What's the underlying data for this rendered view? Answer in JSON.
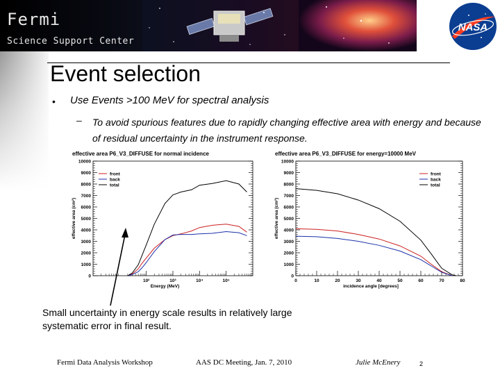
{
  "banner": {
    "title": "Fermi",
    "subtitle": "Science Support Center",
    "nasa_logo_text": "NASA"
  },
  "slide": {
    "title": "Event selection",
    "bullet_marker": "•",
    "bullet": "Use Events >100 MeV for spectral analysis",
    "sub_marker": "–",
    "sub_bullet": "To avoid spurious features due to rapidly changing effective area with energy and because of residual uncertainty in the instrument response.",
    "caption": "Small uncertainty in energy scale results in relatively large systematic error in final result."
  },
  "footer": {
    "left": "Fermi Data Analysis Workshop",
    "center": "AAS DC Meeting, Jan. 7, 2010",
    "right": "Julie McEnery",
    "page": "2"
  },
  "colors": {
    "front": "#cc1f1f",
    "back": "#1a2ea8",
    "total": "#000000"
  },
  "chart_data": [
    {
      "type": "line",
      "title": "effective area P6_V3_DIFFUSE for normal incidence",
      "xlabel": "Energy (MeV)",
      "ylabel": "effective area (cm²)",
      "xscale": "log",
      "xlim": [
        1,
        1000000
      ],
      "ylim": [
        0,
        10000
      ],
      "yticks": [
        0,
        1000,
        2000,
        3000,
        4000,
        5000,
        6000,
        7000,
        8000,
        9000,
        10000
      ],
      "xtick_labels": [
        "10²",
        "10³",
        "10⁴",
        "10⁵"
      ],
      "xtick_values": [
        100,
        1000,
        10000,
        100000
      ],
      "legend_placement": "top-left",
      "series": [
        {
          "name": "front",
          "x": [
            20,
            30,
            50,
            70,
            100,
            200,
            500,
            1000,
            2000,
            5000,
            10000,
            30000,
            100000,
            300000,
            600000
          ],
          "y": [
            0,
            150,
            600,
            1100,
            1550,
            2400,
            3150,
            3500,
            3650,
            3900,
            4200,
            4400,
            4500,
            4300,
            3800
          ]
        },
        {
          "name": "back",
          "x": [
            20,
            30,
            50,
            70,
            100,
            200,
            500,
            1000,
            2000,
            5000,
            10000,
            30000,
            100000,
            300000,
            600000
          ],
          "y": [
            0,
            100,
            350,
            700,
            1150,
            2100,
            3150,
            3550,
            3600,
            3600,
            3650,
            3700,
            3850,
            3750,
            3500
          ]
        },
        {
          "name": "total",
          "x": [
            20,
            30,
            50,
            70,
            100,
            200,
            500,
            1000,
            2000,
            5000,
            10000,
            30000,
            100000,
            300000,
            600000
          ],
          "y": [
            0,
            250,
            950,
            1800,
            2700,
            4500,
            6300,
            7050,
            7300,
            7500,
            7900,
            8050,
            8300,
            8000,
            7300
          ]
        }
      ]
    },
    {
      "type": "line",
      "title": "effective area P6_V3_DIFFUSE for energy=10000 MeV",
      "xlabel": "incidence angle [degrees]",
      "ylabel": "effective area (cm²)",
      "xlim": [
        0,
        80
      ],
      "ylim": [
        0,
        10000
      ],
      "yticks": [
        0,
        1000,
        2000,
        3000,
        4000,
        5000,
        6000,
        7000,
        8000,
        9000,
        10000
      ],
      "xticks": [
        0,
        10,
        20,
        30,
        40,
        50,
        60,
        70,
        80
      ],
      "legend_placement": "top-right",
      "series": [
        {
          "name": "front",
          "x": [
            0,
            10,
            20,
            30,
            40,
            50,
            60,
            65,
            70,
            75
          ],
          "y": [
            4100,
            4050,
            3900,
            3600,
            3200,
            2600,
            1700,
            1000,
            350,
            0
          ]
        },
        {
          "name": "back",
          "x": [
            0,
            10,
            20,
            30,
            40,
            50,
            60,
            65,
            70,
            75
          ],
          "y": [
            3450,
            3400,
            3250,
            3000,
            2650,
            2150,
            1400,
            850,
            300,
            0
          ]
        },
        {
          "name": "total",
          "x": [
            0,
            10,
            20,
            30,
            40,
            50,
            60,
            65,
            70,
            75,
            77
          ],
          "y": [
            7600,
            7450,
            7150,
            6600,
            5850,
            4750,
            3100,
            1900,
            650,
            80,
            0
          ]
        }
      ]
    }
  ]
}
